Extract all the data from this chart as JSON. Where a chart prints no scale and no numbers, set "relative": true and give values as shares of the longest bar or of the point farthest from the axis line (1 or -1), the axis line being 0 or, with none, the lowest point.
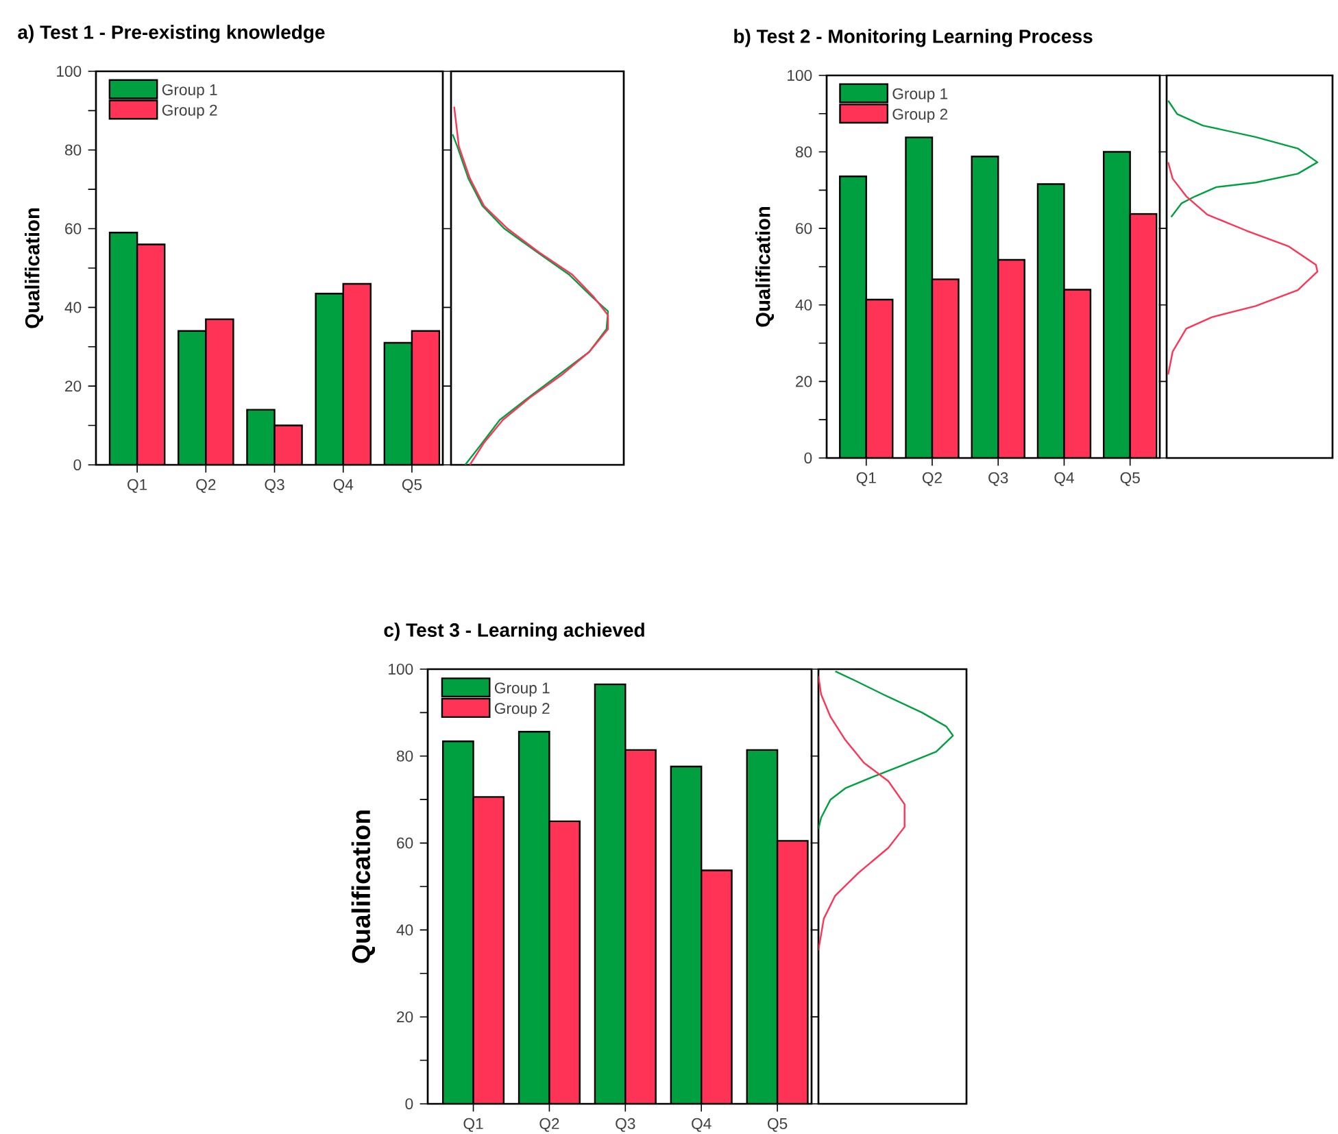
{
  "chart_data": [
    {
      "type": "bar",
      "title": "a) Test 1 - Pre-existing knowledge",
      "ylabel": "Qualification",
      "categories": [
        "Q1",
        "Q2",
        "Q3",
        "Q4",
        "Q5"
      ],
      "series": [
        {
          "name": "Group 1",
          "color": "#00a040",
          "values": [
            59,
            34,
            14,
            43.5,
            31
          ]
        },
        {
          "name": "Group 2",
          "color": "#ff3355",
          "values": [
            56,
            37,
            10,
            46,
            34
          ]
        }
      ],
      "ylim": [
        0,
        100
      ],
      "yticks": [
        0,
        {
          "value": 10,
          "label": null
        },
        20,
        {
          "value": 30,
          "label": null
        },
        40,
        {
          "value": 50,
          "label": null
        },
        60,
        {
          "value": 70,
          "label": null
        },
        80,
        {
          "value": 90,
          "label": null
        },
        100
      ],
      "legend": "top left"
    },
    {
      "type": "line",
      "orientation": "horizontal",
      "relative": true,
      "tick_labels": false,
      "ylim": [
        0,
        100
      ],
      "yticks": [
        0,
        20,
        40,
        60,
        80,
        100
      ],
      "series": [
        {
          "color": "#00a040",
          "x": [
            0,
            5.6,
            11.4,
            17,
            23,
            28.7,
            34.5,
            39,
            42.6,
            48.4,
            54,
            60,
            65.8,
            72.8,
            80.9,
            84
          ],
          "values": [
            0.09,
            0.2,
            0.31,
            0.49,
            0.69,
            0.88,
            0.99,
            1.0,
            0.9,
            0.75,
            0.55,
            0.34,
            0.2,
            0.11,
            0.04,
            0.01
          ]
        },
        {
          "color": "#ff3355",
          "x": [
            0,
            5.6,
            11.4,
            17,
            23,
            28.7,
            34.5,
            38,
            42.6,
            48.4,
            54,
            60,
            65.8,
            72.8,
            80.9,
            91
          ],
          "values": [
            0.12,
            0.21,
            0.33,
            0.5,
            0.71,
            0.88,
            1.0,
            1.0,
            0.91,
            0.77,
            0.56,
            0.36,
            0.21,
            0.12,
            0.05,
            0.02
          ]
        }
      ]
    },
    {
      "type": "bar",
      "title": "b) Test 2 - Monitoring Learning Process",
      "ylabel": "Qualification",
      "categories": [
        "Q1",
        "Q2",
        "Q3",
        "Q4",
        "Q5"
      ],
      "series": [
        {
          "name": "Group 1",
          "color": "#00a040",
          "values": [
            73.6,
            83.8,
            78.8,
            71.6,
            80
          ]
        },
        {
          "name": "Group 2",
          "color": "#ff3355",
          "values": [
            41.4,
            46.7,
            51.8,
            44,
            63.8
          ]
        }
      ],
      "ylim": [
        0,
        100
      ],
      "yticks": [
        0,
        {
          "value": 10,
          "label": null
        },
        20,
        {
          "value": 30,
          "label": null
        },
        40,
        {
          "value": 50,
          "label": null
        },
        60,
        {
          "value": 70,
          "label": null
        },
        80,
        {
          "value": 90,
          "label": null
        },
        100
      ],
      "legend": "top left"
    },
    {
      "type": "line",
      "orientation": "horizontal",
      "relative": true,
      "tick_labels": false,
      "ylim": [
        0,
        100
      ],
      "yticks": [
        0,
        20,
        40,
        60,
        80,
        100
      ],
      "series": [
        {
          "color": "#00a040",
          "x": [
            63,
            66.6,
            68.4,
            70.8,
            72,
            74.3,
            77.3,
            80.9,
            83.9,
            86.9,
            89.9,
            93.4
          ],
          "values": [
            0.03,
            0.1,
            0.19,
            0.33,
            0.59,
            0.87,
            1.0,
            0.87,
            0.59,
            0.24,
            0.07,
            0.01
          ]
        },
        {
          "color": "#ff3355",
          "x": [
            21.8,
            27.8,
            33.8,
            36.8,
            39.7,
            43.9,
            48.7,
            50.5,
            55.3,
            59.4,
            63.6,
            68.4,
            73,
            77.3
          ],
          "values": [
            0.01,
            0.04,
            0.13,
            0.3,
            0.59,
            0.87,
            1.0,
            0.99,
            0.81,
            0.53,
            0.27,
            0.13,
            0.04,
            0.01
          ]
        }
      ]
    },
    {
      "type": "bar",
      "title": "c) Test 3 - Learning achieved",
      "ylabel": "Qualification",
      "categories": [
        "Q1",
        "Q2",
        "Q3",
        "Q4",
        "Q5"
      ],
      "series": [
        {
          "name": "Group 1",
          "color": "#00a040",
          "values": [
            83.4,
            85.6,
            96.5,
            77.6,
            81.4
          ]
        },
        {
          "name": "Group 2",
          "color": "#ff3355",
          "values": [
            70.6,
            65,
            81.4,
            53.7,
            60.5
          ]
        }
      ],
      "ylim": [
        0,
        100
      ],
      "yticks": [
        0,
        {
          "value": 10,
          "label": null
        },
        20,
        {
          "value": 30,
          "label": null
        },
        40,
        {
          "value": 50,
          "label": null
        },
        60,
        {
          "value": 70,
          "label": null
        },
        80,
        {
          "value": 90,
          "label": null
        },
        100
      ],
      "legend": "top left"
    },
    {
      "type": "line",
      "orientation": "horizontal",
      "relative": true,
      "tick_labels": false,
      "ylim": [
        0,
        100
      ],
      "yticks": [
        0,
        20,
        40,
        60,
        80,
        100
      ],
      "series": [
        {
          "color": "#00a040",
          "x": [
            63.2,
            65.8,
            70,
            72.6,
            75.3,
            77.9,
            81,
            84.7,
            86.8,
            90,
            94.2,
            97.4,
            99.5
          ],
          "values": [
            0,
            0.02,
            0.09,
            0.2,
            0.41,
            0.625,
            0.875,
            1.0,
            0.95,
            0.77,
            0.48,
            0.27,
            0.125
          ]
        },
        {
          "color": "#ff3355",
          "x": [
            35.3,
            42.6,
            47.9,
            53.2,
            58.9,
            63.7,
            68.9,
            74.2,
            78.4,
            83.7,
            89,
            94.2,
            98.4
          ],
          "values": [
            0,
            0.04,
            0.125,
            0.3,
            0.52,
            0.64,
            0.64,
            0.52,
            0.34,
            0.2,
            0.09,
            0.02,
            0
          ]
        }
      ]
    }
  ]
}
